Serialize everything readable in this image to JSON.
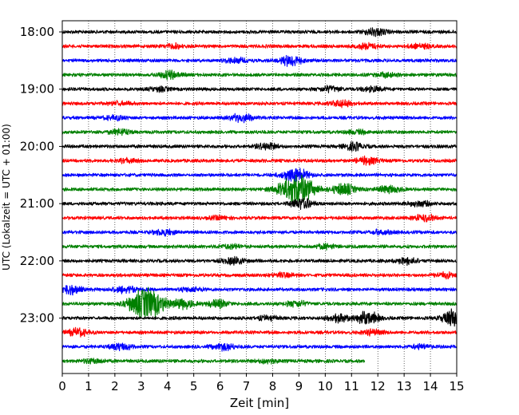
{
  "chart_data": {
    "type": "line",
    "title": "",
    "xlabel": "Zeit  [min]",
    "ylabel": "UTC (Lokalzeit = UTC + 01:00)",
    "xlim": [
      0,
      15
    ],
    "x_ticks": [
      "0",
      "1",
      "2",
      "3",
      "4",
      "5",
      "6",
      "7",
      "8",
      "9",
      "10",
      "11",
      "12",
      "13",
      "14",
      "15"
    ],
    "y_ticks": [
      "18:00",
      "19:00",
      "20:00",
      "21:00",
      "22:00",
      "23:00"
    ],
    "minutes_per_line": 15,
    "grid": "x",
    "trace_colors": [
      "#000000",
      "#ff0000",
      "#0000ff",
      "#008000"
    ],
    "traces": [
      {
        "start": "18:00",
        "end_min": 15,
        "events": [
          [
            11.9,
            0.5
          ]
        ]
      },
      {
        "start": "18:15",
        "end_min": 15,
        "events": [
          [
            4.3,
            0.3
          ],
          [
            11.6,
            0.4
          ],
          [
            13.6,
            0.35
          ]
        ]
      },
      {
        "start": "18:30",
        "end_min": 15,
        "events": [
          [
            8.7,
            0.8
          ],
          [
            6.6,
            0.35
          ]
        ]
      },
      {
        "start": "18:45",
        "end_min": 15,
        "events": [
          [
            4.1,
            0.55
          ],
          [
            12.3,
            0.3
          ]
        ]
      },
      {
        "start": "19:00",
        "end_min": 15,
        "events": [
          [
            3.7,
            0.3
          ],
          [
            10.2,
            0.4
          ],
          [
            11.8,
            0.35
          ]
        ]
      },
      {
        "start": "19:15",
        "end_min": 15,
        "events": [
          [
            10.6,
            0.5
          ],
          [
            2.2,
            0.3
          ]
        ]
      },
      {
        "start": "19:30",
        "end_min": 15,
        "events": [
          [
            6.8,
            0.65
          ],
          [
            2.0,
            0.3
          ]
        ]
      },
      {
        "start": "19:45",
        "end_min": 15,
        "events": [
          [
            2.2,
            0.4
          ],
          [
            11.2,
            0.3
          ]
        ]
      },
      {
        "start": "20:00",
        "end_min": 15,
        "events": [
          [
            7.8,
            0.45
          ],
          [
            11.1,
            0.55
          ]
        ]
      },
      {
        "start": "20:15",
        "end_min": 15,
        "events": [
          [
            11.6,
            0.55
          ],
          [
            2.5,
            0.3
          ]
        ]
      },
      {
        "start": "20:30",
        "end_min": 15,
        "events": [
          [
            9.0,
            0.8
          ],
          [
            8.6,
            0.4
          ]
        ]
      },
      {
        "start": "20:45",
        "end_min": 15,
        "events": [
          [
            8.9,
            2.5
          ],
          [
            10.7,
            0.9
          ],
          [
            12.4,
            0.6
          ]
        ]
      },
      {
        "start": "21:00",
        "end_min": 15,
        "events": [
          [
            9.1,
            0.8
          ],
          [
            13.6,
            0.4
          ]
        ]
      },
      {
        "start": "21:15",
        "end_min": 15,
        "events": [
          [
            13.8,
            0.55
          ],
          [
            6.0,
            0.25
          ]
        ]
      },
      {
        "start": "21:30",
        "end_min": 15,
        "events": [
          [
            3.9,
            0.45
          ],
          [
            12.1,
            0.3
          ]
        ]
      },
      {
        "start": "21:45",
        "end_min": 15,
        "events": [
          [
            10.0,
            0.35
          ],
          [
            6.4,
            0.3
          ]
        ]
      },
      {
        "start": "22:00",
        "end_min": 15,
        "events": [
          [
            6.5,
            0.5
          ],
          [
            13.1,
            0.45
          ]
        ]
      },
      {
        "start": "22:15",
        "end_min": 15,
        "events": [
          [
            8.4,
            0.3
          ],
          [
            14.6,
            0.35
          ]
        ]
      },
      {
        "start": "22:30",
        "end_min": 15,
        "events": [
          [
            0.3,
            0.7
          ],
          [
            2.4,
            0.55
          ],
          [
            4.9,
            0.3
          ]
        ]
      },
      {
        "start": "22:45",
        "end_min": 15,
        "events": [
          [
            3.2,
            2.5
          ],
          [
            4.6,
            0.7
          ],
          [
            5.9,
            0.6
          ],
          [
            8.9,
            0.4
          ]
        ]
      },
      {
        "start": "23:00",
        "end_min": 15,
        "events": [
          [
            11.6,
            1.2
          ],
          [
            10.5,
            0.6
          ],
          [
            14.9,
            1.4
          ],
          [
            7.8,
            0.3
          ]
        ]
      },
      {
        "start": "23:15",
        "end_min": 15,
        "events": [
          [
            0.6,
            0.55
          ],
          [
            11.8,
            0.35
          ]
        ]
      },
      {
        "start": "23:30",
        "end_min": 15,
        "events": [
          [
            2.2,
            0.5
          ],
          [
            6.1,
            0.55
          ],
          [
            13.7,
            0.3
          ]
        ]
      },
      {
        "start": "23:45",
        "end_min": 11.5,
        "events": [
          [
            1.2,
            0.3
          ],
          [
            7.8,
            0.3
          ]
        ]
      }
    ]
  }
}
